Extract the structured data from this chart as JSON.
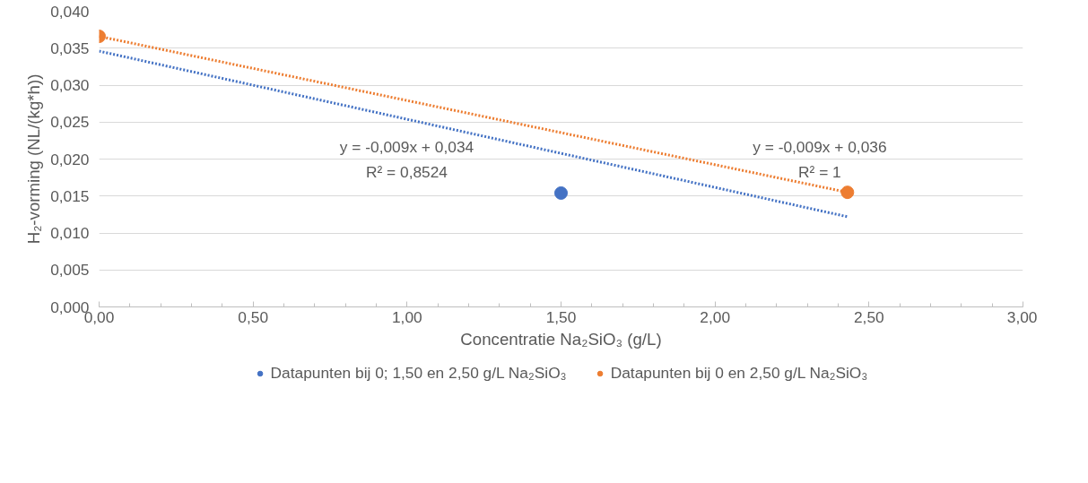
{
  "chart_data": {
    "type": "scatter",
    "xlabel": "Concentratie Na₂SiO₃ (g/L)",
    "ylabel": "H₂-vorming (NL/(kg*h))",
    "xlim": [
      0,
      3
    ],
    "xticks": [
      {
        "value": 0,
        "label": "0,00"
      },
      {
        "value": 0.5,
        "label": "0,50"
      },
      {
        "value": 1,
        "label": "1,00"
      },
      {
        "value": 1.5,
        "label": "1,50"
      },
      {
        "value": 2,
        "label": "2,00"
      },
      {
        "value": 2.5,
        "label": "2,50"
      },
      {
        "value": 3,
        "label": "3,00"
      }
    ],
    "ylim": [
      0,
      0.04
    ],
    "yticks": [
      {
        "value": 0,
        "label": "0,000"
      },
      {
        "value": 0.005,
        "label": "0,005"
      },
      {
        "value": 0.01,
        "label": "0,010"
      },
      {
        "value": 0.015,
        "label": "0,015"
      },
      {
        "value": 0.02,
        "label": "0,020"
      },
      {
        "value": 0.025,
        "label": "0,025"
      },
      {
        "value": 0.03,
        "label": "0,030"
      },
      {
        "value": 0.035,
        "label": "0,035"
      },
      {
        "value": 0.04,
        "label": "0,040"
      }
    ],
    "grid": "y",
    "legend": "bottom",
    "marker": "circle",
    "series": [
      {
        "type": "line",
        "color": "#4472c4",
        "x": [
          0,
          2.43
        ],
        "values": [
          0.0346,
          0.0122
        ],
        "marker": "none",
        "line_style": "dotted"
      },
      {
        "type": "line",
        "color": "#ed7d31",
        "x": [
          0,
          2.43
        ],
        "values": [
          0.0366,
          0.0155
        ],
        "marker": "none",
        "line_style": "dotted"
      },
      {
        "name": "Datapunten bij 0; 1,50 en 2,50 g/L Na₂SiO₃",
        "color": "#4472c4",
        "x": [
          1.5
        ],
        "values": [
          0.0154
        ]
      },
      {
        "name": "Datapunten bij 0 en 2,50 g/L Na₂SiO₃",
        "color": "#ed7d31",
        "x": [
          0,
          2.43
        ],
        "values": [
          0.0366,
          0.0155
        ]
      }
    ],
    "annotations": [
      "y = -0,009x + 0,034\nR² = 0,8524",
      "y = -0,009x + 0,036\nR² = 1"
    ]
  }
}
